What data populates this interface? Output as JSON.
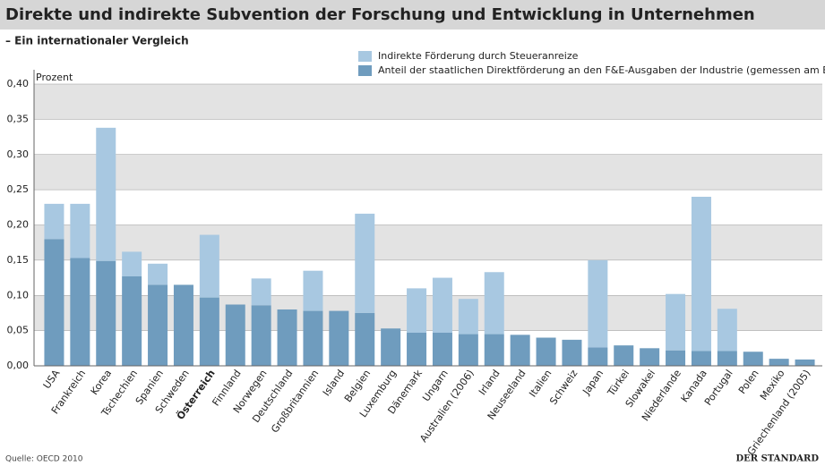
{
  "chart_data": {
    "type": "stacked_bar",
    "title": "Direkte und indirekte Subvention der Forschung und Entwicklung in Unternehmen",
    "subtitle": "– Ein internationaler Vergleich",
    "y_label": "Prozent",
    "source": "Quelle: OECD 2010",
    "publisher": "DER STANDARD",
    "categories": [
      "USA",
      "Frankreich",
      "Korea",
      "Tschechien",
      "Spanien",
      "Schweden",
      "Österreich",
      "Finnland",
      "Norwegen",
      "Deutschland",
      "Großbritannien",
      "Island",
      "Belgien",
      "Luxemburg",
      "Dänemark",
      "Ungarn",
      "Australien (2006)",
      "Irland",
      "Neuseeland",
      "Italien",
      "Schweiz",
      "Japan",
      "Türkei",
      "Slowakei",
      "Niederlande",
      "Kanada",
      "Portugal",
      "Polen",
      "Mexiko",
      "Griechenland (2005)"
    ],
    "series": [
      {
        "name": "Anteil der staatlichen Direktförderung an den F&E-Ausgaben der Industrie (gemessen am BIP)",
        "color": "#6f9cbe",
        "values": [
          0.18,
          0.153,
          0.149,
          0.127,
          0.115,
          0.115,
          0.097,
          0.087,
          0.086,
          0.08,
          0.078,
          0.078,
          0.075,
          0.053,
          0.047,
          0.047,
          0.045,
          0.045,
          0.044,
          0.04,
          0.037,
          0.026,
          0.029,
          0.025,
          0.022,
          0.021,
          0.021,
          0.02,
          0.01,
          0.009
        ]
      },
      {
        "name": "Indirekte Förderung durch Steueranreize",
        "color": "#a8c8e1",
        "values": [
          0.05,
          0.077,
          0.189,
          0.035,
          0.03,
          0,
          0.089,
          0,
          0.038,
          0,
          0.057,
          0,
          0.141,
          0,
          0.063,
          0.078,
          0.05,
          0.088,
          0,
          0,
          0,
          0.124,
          0,
          0,
          0.08,
          0.219,
          0.06,
          0,
          0,
          0
        ]
      }
    ],
    "ylim": [
      0,
      0.4
    ],
    "yticks": [
      {
        "value": 0,
        "label": "0,00"
      },
      {
        "value": 0.05,
        "label": "0,05"
      },
      {
        "value": 0.1,
        "label": "0,10"
      },
      {
        "value": 0.15,
        "label": "0,15"
      },
      {
        "value": 0.2,
        "label": "0,20"
      },
      {
        "value": 0.25,
        "label": "0,25"
      },
      {
        "value": 0.3,
        "label": "0,30"
      },
      {
        "value": 0.35,
        "label": "0,35"
      },
      {
        "value": 0.4,
        "label": "0,40"
      }
    ],
    "grid": true
  }
}
